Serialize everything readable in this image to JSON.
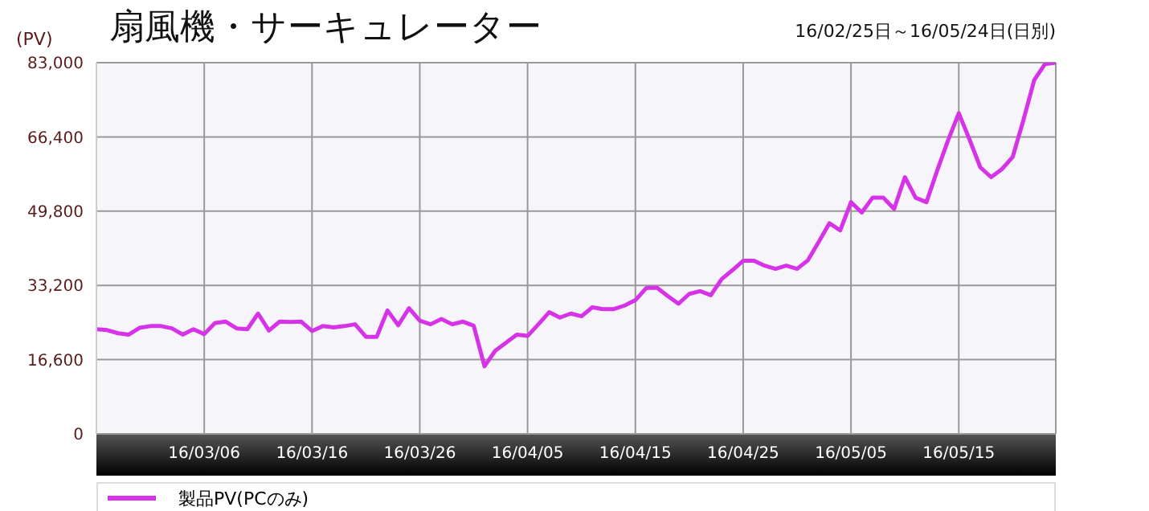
{
  "chart_data": {
    "type": "line",
    "title": "扇風機・サーキュレーター",
    "subtitle": "16/02/25日～16/05/24日(日別)",
    "ylabel": "(PV)",
    "x": [
      "--02-25",
      "--02-26",
      "--02-27",
      "--02-28",
      "--02-29",
      "--03-01",
      "--03-02",
      "--03-03",
      "--03-04",
      "--03-05",
      "--03-06",
      "--03-07",
      "--03-08",
      "--03-09",
      "--03-10",
      "--03-11",
      "--03-12",
      "--03-13",
      "--03-14",
      "--03-15",
      "--03-16",
      "--03-17",
      "--03-18",
      "--03-19",
      "--03-20",
      "--03-21",
      "--03-22",
      "--03-23",
      "--03-24",
      "--03-25",
      "--03-26",
      "--03-27",
      "--03-28",
      "--03-29",
      "--03-30",
      "--03-31",
      "--04-01",
      "--04-02",
      "--04-03",
      "--04-04",
      "--04-05",
      "--04-06",
      "--04-07",
      "--04-08",
      "--04-09",
      "--04-10",
      "--04-11",
      "--04-12",
      "--04-13",
      "--04-14",
      "--04-15",
      "--04-16",
      "--04-17",
      "--04-18",
      "--04-19",
      "--04-20",
      "--04-21",
      "--04-22",
      "--04-23",
      "--04-24",
      "--04-25",
      "--04-26",
      "--04-27",
      "--04-28",
      "--04-29",
      "--04-30",
      "--05-01",
      "--05-02",
      "--05-03",
      "--05-04",
      "--05-05",
      "--05-06",
      "--05-07",
      "--05-08",
      "--05-09",
      "--05-10",
      "--05-11",
      "--05-12",
      "--05-13",
      "--05-14",
      "--05-15",
      "--05-16",
      "--05-17",
      "--05-18",
      "--05-19",
      "--05-20",
      "--05-21",
      "--05-22",
      "--05-23",
      "--05-24"
    ],
    "series": [
      {
        "name": "製品PV(PCのみ)",
        "color": "#d633e8",
        "values": [
          23400,
          23200,
          22500,
          22200,
          23700,
          24100,
          24100,
          23600,
          22200,
          23400,
          22300,
          24800,
          25100,
          23600,
          23400,
          26900,
          23100,
          25100,
          25000,
          25100,
          23000,
          24100,
          23800,
          24100,
          24500,
          21700,
          21700,
          27600,
          24300,
          28100,
          25300,
          24500,
          25700,
          24500,
          25100,
          24200,
          15100,
          18600,
          20400,
          22200,
          21900,
          24500,
          27200,
          26000,
          26900,
          26300,
          28300,
          27900,
          27900,
          28700,
          29900,
          32600,
          32700,
          30800,
          29100,
          31300,
          31900,
          31000,
          34600,
          36600,
          38700,
          38700,
          37600,
          36900,
          37600,
          36900,
          38800,
          42900,
          47100,
          45500,
          51800,
          49500,
          52800,
          52800,
          50300,
          57400,
          52800,
          51800,
          58900,
          65600,
          71700,
          65800,
          59600,
          57400,
          59200,
          61900,
          70200,
          79100,
          82700,
          83000
        ]
      }
    ],
    "xlim": [
      "--02-25",
      "--05-24"
    ],
    "xticks": [
      {
        "value": "--03-06",
        "label": "16/03/06"
      },
      {
        "value": "--03-16",
        "label": "16/03/16"
      },
      {
        "value": "--03-26",
        "label": "16/03/26"
      },
      {
        "value": "--04-05",
        "label": "16/04/05"
      },
      {
        "value": "--04-15",
        "label": "16/04/15"
      },
      {
        "value": "--04-25",
        "label": "16/04/25"
      },
      {
        "value": "--05-05",
        "label": "16/05/05"
      },
      {
        "value": "--05-15",
        "label": "16/05/15"
      }
    ],
    "ylim": [
      0,
      83000
    ],
    "yticks": [
      0,
      {
        "value": 16600,
        "label": "16,600"
      },
      {
        "value": 33200,
        "label": "33,200"
      },
      {
        "value": 49800,
        "label": "49,800"
      },
      {
        "value": 66400,
        "label": "66,400"
      },
      {
        "value": 83000,
        "label": "83,000"
      }
    ],
    "grid": true,
    "legend": "bottom",
    "marker": "none",
    "line_style": "solid"
  }
}
